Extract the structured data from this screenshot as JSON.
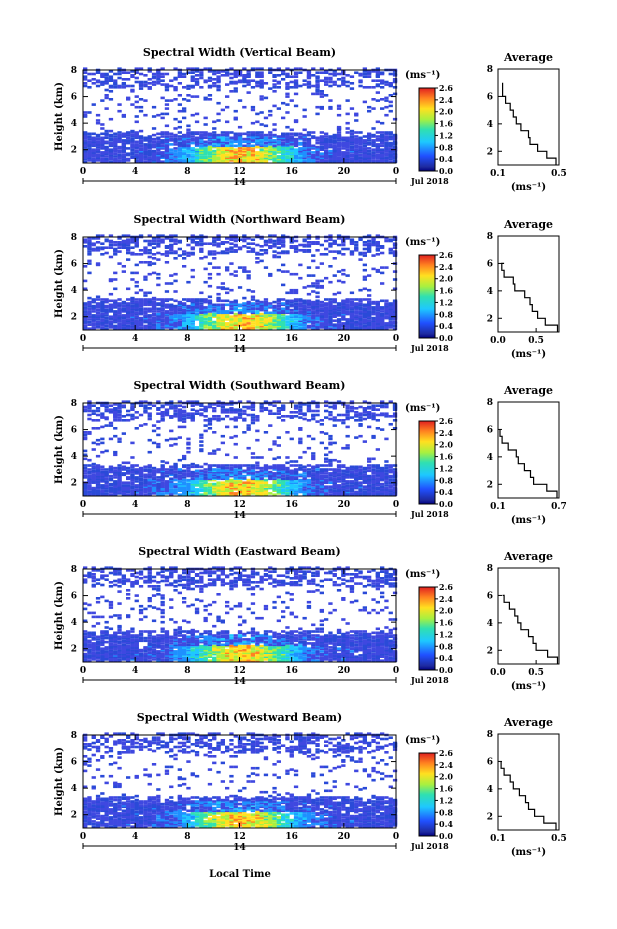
{
  "chart_data": {
    "type": "heatmap",
    "xlabel": "Local Time",
    "date_tick": "14",
    "date_label": "Jul 2018",
    "x_ticks": [
      "0",
      "4",
      "8",
      "12",
      "16",
      "20",
      "0"
    ],
    "xlim_hours": [
      0,
      24
    ],
    "ylim_km": [
      1,
      8
    ],
    "y_ticks": [
      "2",
      "4",
      "6",
      "8"
    ],
    "ylabel": "Height (km)",
    "colorbar": {
      "unit": "(ms⁻¹)",
      "ticks": [
        "2.6",
        "2.4",
        "2.0",
        "1.6",
        "1.2",
        "0.8",
        "0.4",
        "0.0"
      ],
      "range": [
        0,
        2.8
      ]
    },
    "panels": [
      {
        "title": "Spectral Width (Vertical Beam)",
        "avg_title": "Average",
        "avg_xlim": [
          0.1,
          0.5
        ],
        "avg_xticks": [
          "0.1",
          "0.5"
        ],
        "avg_profile": {
          "height_km": [
            1.0,
            1.5,
            2.0,
            2.5,
            3.0,
            3.5,
            4.0,
            4.5,
            5.0,
            5.5,
            6.0,
            6.5,
            7.0
          ],
          "width_ms": [
            0.48,
            0.42,
            0.36,
            0.31,
            0.3,
            0.25,
            0.22,
            0.2,
            0.18,
            0.15,
            0.13,
            0.13,
            0.13
          ]
        }
      },
      {
        "title": "Spectral Width (Northward Beam)",
        "avg_title": "Average",
        "avg_xlim": [
          0.0,
          0.8
        ],
        "avg_xticks": [
          "0.0",
          "0.5"
        ],
        "avg_profile": {
          "height_km": [
            1.0,
            1.5,
            2.0,
            2.5,
            3.0,
            3.5,
            4.0,
            4.5,
            5.0,
            5.5,
            6.0
          ],
          "width_ms": [
            0.78,
            0.62,
            0.52,
            0.45,
            0.42,
            0.35,
            0.22,
            0.2,
            0.08,
            0.05,
            0.08
          ]
        }
      },
      {
        "title": "Spectral Width (Southward Beam)",
        "avg_title": "Average",
        "avg_xlim": [
          0.1,
          0.7
        ],
        "avg_xticks": [
          "0.1",
          "0.7"
        ],
        "avg_profile": {
          "height_km": [
            1.0,
            1.5,
            2.0,
            2.5,
            3.0,
            3.5,
            4.0,
            4.5,
            5.0,
            5.5,
            6.0
          ],
          "width_ms": [
            0.68,
            0.58,
            0.45,
            0.42,
            0.36,
            0.3,
            0.28,
            0.2,
            0.14,
            0.12,
            0.12
          ]
        }
      },
      {
        "title": "Spectral Width (Eastward Beam)",
        "avg_title": "Average",
        "avg_xlim": [
          0.0,
          0.8
        ],
        "avg_xticks": [
          "0.0",
          "0.5"
        ],
        "avg_profile": {
          "height_km": [
            1.0,
            1.5,
            2.0,
            2.5,
            3.0,
            3.5,
            4.0,
            4.5,
            5.0,
            5.5,
            6.0
          ],
          "width_ms": [
            0.78,
            0.65,
            0.5,
            0.46,
            0.4,
            0.3,
            0.26,
            0.22,
            0.15,
            0.08,
            0.06
          ]
        }
      },
      {
        "title": "Spectral Width (Westward Beam)",
        "avg_title": "Average",
        "avg_xlim": [
          0.1,
          0.5
        ],
        "avg_xticks": [
          "0.1",
          "0.5"
        ],
        "avg_profile": {
          "height_km": [
            1.0,
            1.5,
            2.0,
            2.5,
            3.0,
            3.5,
            4.0,
            4.5,
            5.0,
            5.5,
            6.0
          ],
          "width_ms": [
            0.48,
            0.4,
            0.34,
            0.3,
            0.28,
            0.24,
            0.2,
            0.18,
            0.14,
            0.12,
            0.12
          ]
        }
      }
    ]
  }
}
